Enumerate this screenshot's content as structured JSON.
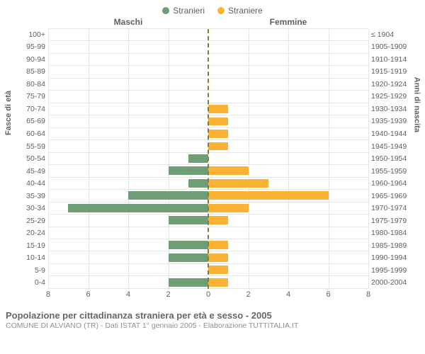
{
  "legend": {
    "male": {
      "label": "Stranieri",
      "color": "#6e9e75"
    },
    "female": {
      "label": "Straniere",
      "color": "#f9b233"
    }
  },
  "headers": {
    "male": "Maschi",
    "female": "Femmine"
  },
  "axis_titles": {
    "left": "Fasce di età",
    "right": "Anni di nascita"
  },
  "chart": {
    "type": "population-pyramid",
    "x_max": 8,
    "x_ticks": [
      0,
      2,
      4,
      6,
      8
    ],
    "background_color": "#ffffff",
    "grid_color": "#e6e6e6",
    "centerline_color": "#8b7a2f",
    "bar_height_ratio": 0.72,
    "rows": [
      {
        "age": "100+",
        "birth": "≤ 1904",
        "m": 0,
        "f": 0
      },
      {
        "age": "95-99",
        "birth": "1905-1909",
        "m": 0,
        "f": 0
      },
      {
        "age": "90-94",
        "birth": "1910-1914",
        "m": 0,
        "f": 0
      },
      {
        "age": "85-89",
        "birth": "1915-1919",
        "m": 0,
        "f": 0
      },
      {
        "age": "80-84",
        "birth": "1920-1924",
        "m": 0,
        "f": 0
      },
      {
        "age": "75-79",
        "birth": "1925-1929",
        "m": 0,
        "f": 0
      },
      {
        "age": "70-74",
        "birth": "1930-1934",
        "m": 0,
        "f": 1
      },
      {
        "age": "65-69",
        "birth": "1935-1939",
        "m": 0,
        "f": 1
      },
      {
        "age": "60-64",
        "birth": "1940-1944",
        "m": 0,
        "f": 1
      },
      {
        "age": "55-59",
        "birth": "1945-1949",
        "m": 0,
        "f": 1
      },
      {
        "age": "50-54",
        "birth": "1950-1954",
        "m": 1,
        "f": 0
      },
      {
        "age": "45-49",
        "birth": "1955-1959",
        "m": 2,
        "f": 2
      },
      {
        "age": "40-44",
        "birth": "1960-1964",
        "m": 1,
        "f": 3
      },
      {
        "age": "35-39",
        "birth": "1965-1969",
        "m": 4,
        "f": 6
      },
      {
        "age": "30-34",
        "birth": "1970-1974",
        "m": 7,
        "f": 2
      },
      {
        "age": "25-29",
        "birth": "1975-1979",
        "m": 2,
        "f": 1
      },
      {
        "age": "20-24",
        "birth": "1980-1984",
        "m": 0,
        "f": 0
      },
      {
        "age": "15-19",
        "birth": "1985-1989",
        "m": 2,
        "f": 1
      },
      {
        "age": "10-14",
        "birth": "1990-1994",
        "m": 2,
        "f": 1
      },
      {
        "age": "5-9",
        "birth": "1995-1999",
        "m": 0,
        "f": 1
      },
      {
        "age": "0-4",
        "birth": "2000-2004",
        "m": 2,
        "f": 1
      }
    ]
  },
  "footer": {
    "title": "Popolazione per cittadinanza straniera per età e sesso - 2005",
    "subtitle": "COMUNE DI ALVIANO (TR) - Dati ISTAT 1° gennaio 2005 - Elaborazione TUTTITALIA.IT"
  }
}
